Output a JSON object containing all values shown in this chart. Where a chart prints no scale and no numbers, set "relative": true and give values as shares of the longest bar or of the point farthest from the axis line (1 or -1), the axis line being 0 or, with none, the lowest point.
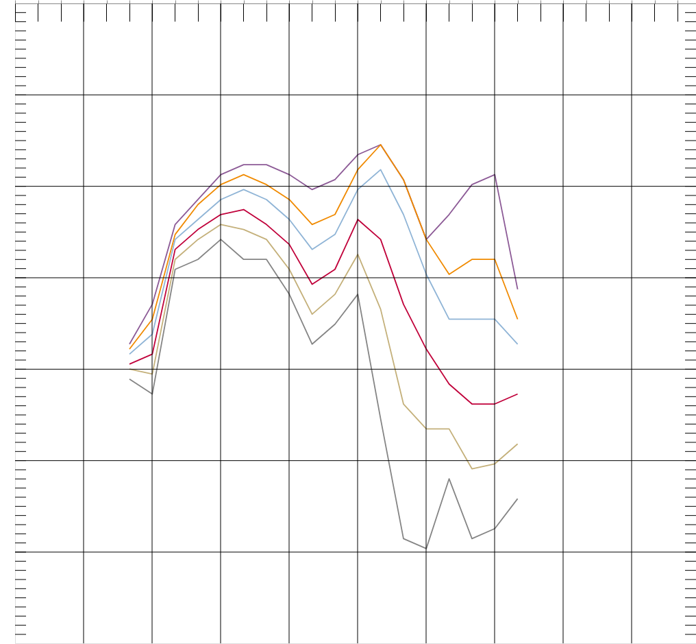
{
  "chart_data": {
    "type": "line",
    "relative": true,
    "grid": true,
    "categories": [
      null,
      null,
      null,
      null,
      null,
      null,
      null,
      null,
      null,
      null,
      null,
      null,
      null,
      null,
      null,
      null,
      null,
      null
    ],
    "series": [
      {
        "color": "#8c5a96",
        "values": [
          0.6,
          0.68,
          0.84,
          0.89,
          0.94,
          0.96,
          0.96,
          0.94,
          0.91,
          0.93,
          0.98,
          1.0,
          0.93,
          0.81,
          0.86,
          0.92,
          0.94,
          0.71
        ]
      },
      {
        "color": "#f08a00",
        "values": [
          0.59,
          0.65,
          0.82,
          0.88,
          0.92,
          0.94,
          0.92,
          0.89,
          0.84,
          0.86,
          0.95,
          1.0,
          0.93,
          0.81,
          0.74,
          0.77,
          0.77,
          0.65
        ]
      },
      {
        "color": "#8fb4d6",
        "values": [
          0.58,
          0.62,
          0.81,
          0.85,
          0.89,
          0.91,
          0.89,
          0.85,
          0.79,
          0.82,
          0.91,
          0.95,
          0.86,
          0.74,
          0.65,
          0.65,
          0.65,
          0.6
        ]
      },
      {
        "color": "#c0003a",
        "values": [
          0.56,
          0.58,
          0.79,
          0.83,
          0.86,
          0.87,
          0.84,
          0.8,
          0.72,
          0.75,
          0.85,
          0.81,
          0.68,
          0.59,
          0.52,
          0.48,
          0.48,
          0.5
        ]
      },
      {
        "color": "#c4b07a",
        "values": [
          0.55,
          0.54,
          0.77,
          0.81,
          0.84,
          0.83,
          0.81,
          0.75,
          0.66,
          0.7,
          0.78,
          0.67,
          0.48,
          0.43,
          0.43,
          0.35,
          0.36,
          0.4
        ]
      },
      {
        "color": "#858585",
        "values": [
          0.53,
          0.5,
          0.75,
          0.77,
          0.81,
          0.77,
          0.77,
          0.7,
          0.6,
          0.64,
          0.7,
          0.45,
          0.21,
          0.19,
          0.33,
          0.21,
          0.23,
          0.29
        ]
      }
    ]
  }
}
